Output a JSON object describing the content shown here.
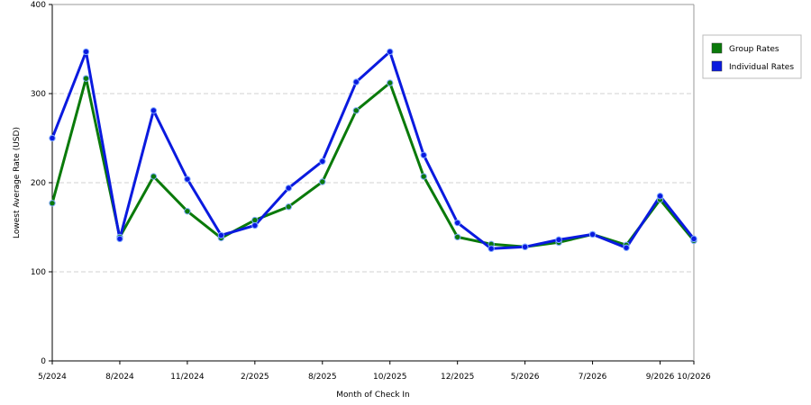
{
  "chart_data": {
    "type": "line",
    "xlabel": "Month of Check In",
    "ylabel": "Lowest Average Rate (USD)",
    "ylim": [
      0,
      400
    ],
    "yticks": [
      0,
      100,
      200,
      300,
      400
    ],
    "grid": "horizontal dashed",
    "legend_position": "right",
    "x_tick_labels": [
      {
        "index": 0,
        "label": "5/2024"
      },
      {
        "index": 2,
        "label": "8/2024"
      },
      {
        "index": 4,
        "label": "11/2024"
      },
      {
        "index": 6,
        "label": "2/2025"
      },
      {
        "index": 8,
        "label": "8/2025"
      },
      {
        "index": 10,
        "label": "10/2025"
      },
      {
        "index": 12,
        "label": "12/2025"
      },
      {
        "index": 14,
        "label": "5/2026"
      },
      {
        "index": 16,
        "label": "7/2026"
      },
      {
        "index": 18,
        "label": "9/2026"
      },
      {
        "index": 19,
        "label": "10/2026"
      }
    ],
    "point_count": 20,
    "series": [
      {
        "name": "Group Rates",
        "color": "#0a7a0a",
        "values": [
          177,
          317,
          139,
          207,
          168,
          138,
          158,
          173,
          201,
          281,
          312,
          207,
          139,
          131,
          128,
          133,
          142,
          130,
          181,
          135
        ]
      },
      {
        "name": "Individual Rates",
        "color": "#0a1adf",
        "values": [
          250,
          347,
          137,
          281,
          204,
          141,
          152,
          194,
          224,
          313,
          347,
          231,
          155,
          126,
          128,
          136,
          142,
          127,
          185,
          137
        ]
      }
    ]
  }
}
